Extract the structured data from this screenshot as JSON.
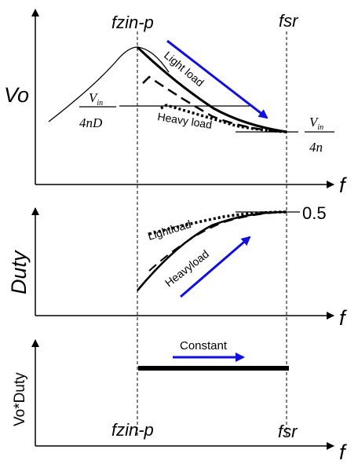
{
  "labels": {
    "fzin_p": "fzin-p",
    "fsr": "fsr",
    "f": "f",
    "vo": "Vo",
    "duty": "Duty",
    "vo_duty": "Vo*Duty",
    "light_load": "Light load",
    "heavy_load": "Heavy load",
    "light_load_duty": "Lightload",
    "heavy_load_duty": "Heavyload",
    "constant": "Constant",
    "half": "0.5"
  },
  "formula_left": {
    "num": "V",
    "num_sub": "in",
    "den": "4nD"
  },
  "formula_right": {
    "num": "V",
    "num_sub": "in",
    "den": "4n"
  },
  "colors": {
    "ink": "#000000",
    "arrow": "#1010e0"
  }
}
